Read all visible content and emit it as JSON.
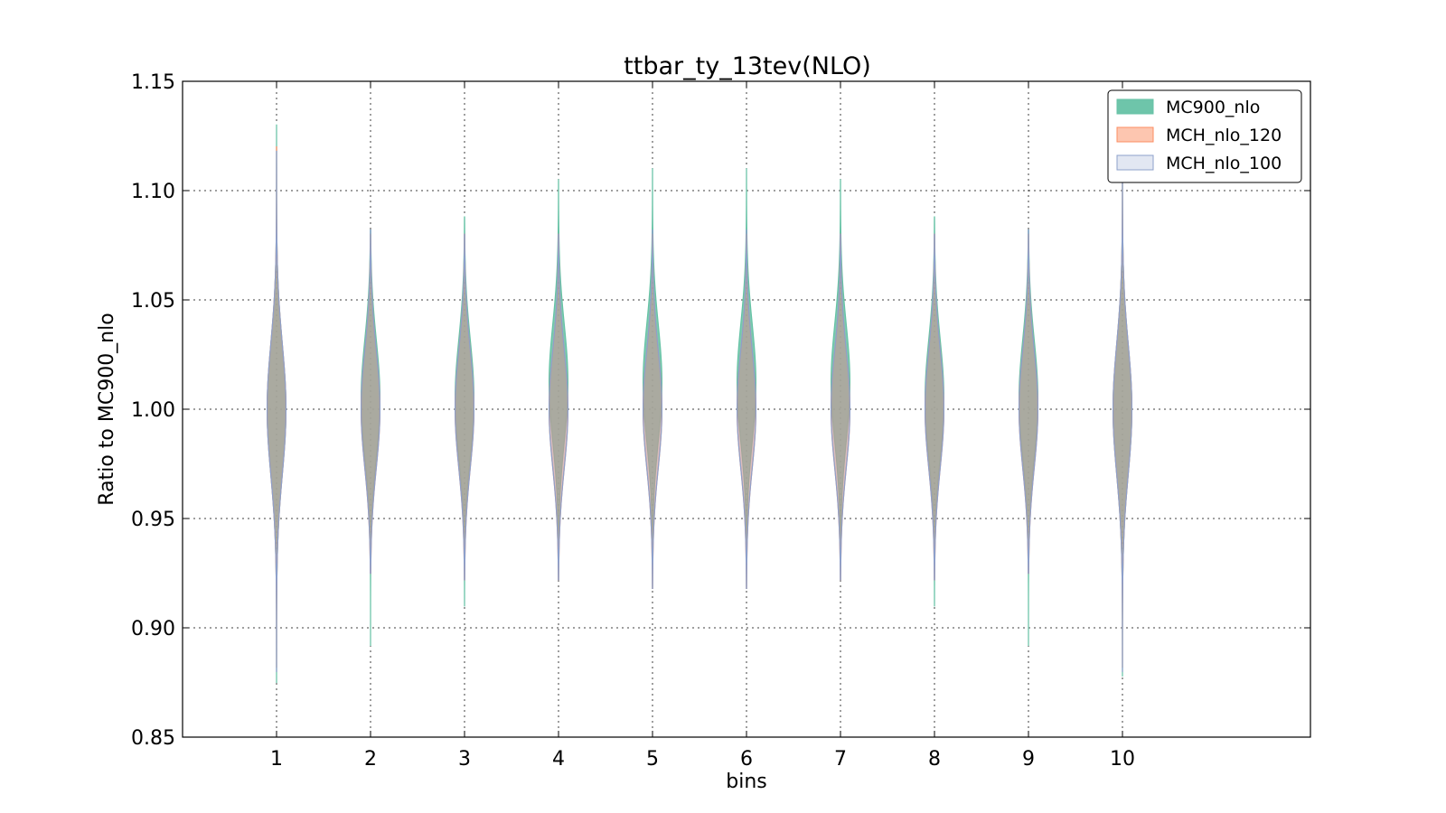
{
  "chart_data": {
    "type": "violin",
    "title": "ttbar_ty_13tev(NLO)",
    "xlabel": "bins",
    "ylabel": "Ratio to MC900_nlo",
    "categories": [
      "1",
      "2",
      "3",
      "4",
      "5",
      "6",
      "7",
      "8",
      "9",
      "10"
    ],
    "x": [
      1,
      2,
      3,
      4,
      5,
      6,
      7,
      8,
      9,
      10
    ],
    "xlim": [
      0,
      12
    ],
    "ylim": [
      0.85,
      1.15
    ],
    "yticks": [
      "0.85",
      "0.90",
      "0.95",
      "1.00",
      "1.05",
      "1.10",
      "1.15"
    ],
    "grid": true,
    "legend_position": "top-right",
    "series": [
      {
        "name": "MC900_nlo",
        "color": "#66c2a5",
        "bins": [
          {
            "min": 0.875,
            "max": 1.13,
            "center": 1.0,
            "spread": 0.03
          },
          {
            "min": 0.892,
            "max": 1.082,
            "center": 1.005,
            "spread": 0.027
          },
          {
            "min": 0.91,
            "max": 1.088,
            "center": 1.005,
            "spread": 0.027
          },
          {
            "min": 0.922,
            "max": 1.105,
            "center": 1.012,
            "spread": 0.027
          },
          {
            "min": 0.918,
            "max": 1.11,
            "center": 1.012,
            "spread": 0.027
          },
          {
            "min": 0.918,
            "max": 1.11,
            "center": 1.012,
            "spread": 0.027
          },
          {
            "min": 0.922,
            "max": 1.105,
            "center": 1.012,
            "spread": 0.027
          },
          {
            "min": 0.91,
            "max": 1.088,
            "center": 1.005,
            "spread": 0.027
          },
          {
            "min": 0.892,
            "max": 1.082,
            "center": 1.005,
            "spread": 0.027
          },
          {
            "min": 0.878,
            "max": 1.11,
            "center": 1.0,
            "spread": 0.03
          }
        ]
      },
      {
        "name": "MCH_nlo_120",
        "color": "#fc8d62",
        "bins": [
          {
            "min": 0.882,
            "max": 1.12,
            "center": 1.0,
            "spread": 0.03
          },
          {
            "min": 0.925,
            "max": 1.08,
            "center": 1.0,
            "spread": 0.027
          },
          {
            "min": 0.922,
            "max": 1.08,
            "center": 1.0,
            "spread": 0.027
          },
          {
            "min": 0.922,
            "max": 1.08,
            "center": 1.0,
            "spread": 0.027
          },
          {
            "min": 0.918,
            "max": 1.08,
            "center": 1.0,
            "spread": 0.027
          },
          {
            "min": 0.918,
            "max": 1.08,
            "center": 1.0,
            "spread": 0.027
          },
          {
            "min": 0.922,
            "max": 1.08,
            "center": 1.0,
            "spread": 0.027
          },
          {
            "min": 0.922,
            "max": 1.08,
            "center": 1.0,
            "spread": 0.027
          },
          {
            "min": 0.925,
            "max": 1.08,
            "center": 1.0,
            "spread": 0.027
          },
          {
            "min": 0.882,
            "max": 1.105,
            "center": 1.0,
            "spread": 0.03
          }
        ]
      },
      {
        "name": "MCH_nlo_100",
        "color": "#8da0cb",
        "bins": [
          {
            "min": 0.88,
            "max": 1.118,
            "center": 1.0,
            "spread": 0.03
          },
          {
            "min": 0.925,
            "max": 1.082,
            "center": 1.0,
            "spread": 0.027
          },
          {
            "min": 0.922,
            "max": 1.08,
            "center": 1.0,
            "spread": 0.027
          },
          {
            "min": 0.922,
            "max": 1.08,
            "center": 1.0,
            "spread": 0.027
          },
          {
            "min": 0.918,
            "max": 1.082,
            "center": 1.0,
            "spread": 0.027
          },
          {
            "min": 0.918,
            "max": 1.082,
            "center": 1.0,
            "spread": 0.027
          },
          {
            "min": 0.922,
            "max": 1.08,
            "center": 1.0,
            "spread": 0.027
          },
          {
            "min": 0.922,
            "max": 1.08,
            "center": 1.0,
            "spread": 0.027
          },
          {
            "min": 0.925,
            "max": 1.082,
            "center": 1.0,
            "spread": 0.027
          },
          {
            "min": 0.88,
            "max": 1.105,
            "center": 1.0,
            "spread": 0.03
          }
        ]
      }
    ]
  }
}
